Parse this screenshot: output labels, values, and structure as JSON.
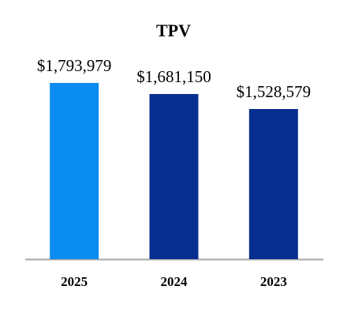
{
  "chart_data": {
    "type": "bar",
    "title": "TPV",
    "categories": [
      "2025",
      "2024",
      "2023"
    ],
    "values": [
      1793979,
      1681150,
      1528579
    ],
    "value_labels": [
      "$1,793,979",
      "$1,681,150",
      "$1,528,579"
    ],
    "colors": [
      "#0a8cf0",
      "#062e8f",
      "#062e8f"
    ]
  }
}
